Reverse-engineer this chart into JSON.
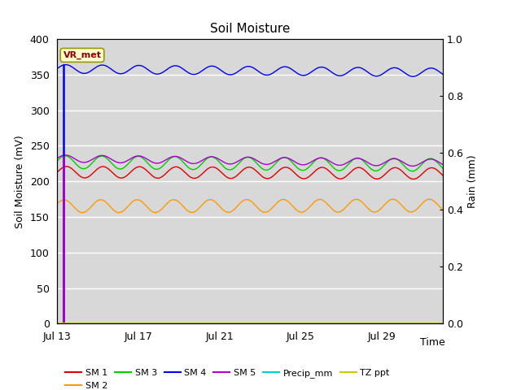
{
  "title": "Soil Moisture",
  "xlabel": "Time",
  "ylabel_left": "Soil Moisture (mV)",
  "ylabel_right": "Rain (mm)",
  "ylim_left": [
    0,
    400
  ],
  "ylim_right": [
    0,
    1.0
  ],
  "bg_color": "#d8d8d8",
  "annotation_text": "VR_met",
  "annotation_box_color": "#ffffcc",
  "annotation_text_color": "#8b0000",
  "x_ticks_labels": [
    "Jul 13",
    "Jul 17",
    "Jul 21",
    "Jul 25",
    "Jul 29"
  ],
  "x_ticks_pos": [
    0,
    4,
    8,
    12,
    16
  ],
  "total_days": 19,
  "sm1_base": 213,
  "sm1_amp": 8,
  "sm1_color": "#dd0000",
  "sm2_base": 165,
  "sm2_amp": 9,
  "sm2_color": "#ff9900",
  "sm3_base": 227,
  "sm3_amp": 9,
  "sm3_color": "#00cc00",
  "sm4_base": 358,
  "sm4_amp": 6,
  "sm4_color": "#0000ee",
  "sm5_base": 232,
  "sm5_amp": 5,
  "sm5_color": "#aa00cc",
  "precip_color": "#00cccc",
  "tz_ppt_color": "#cccc00",
  "legend_labels": [
    "SM 1",
    "SM 2",
    "SM 3",
    "SM 4",
    "SM 5",
    "Precip_mm",
    "TZ ppt"
  ],
  "legend_colors": [
    "#dd0000",
    "#ff9900",
    "#00cc00",
    "#0000ee",
    "#aa00cc",
    "#00cccc",
    "#cccc00"
  ],
  "osc_period": 1.8
}
